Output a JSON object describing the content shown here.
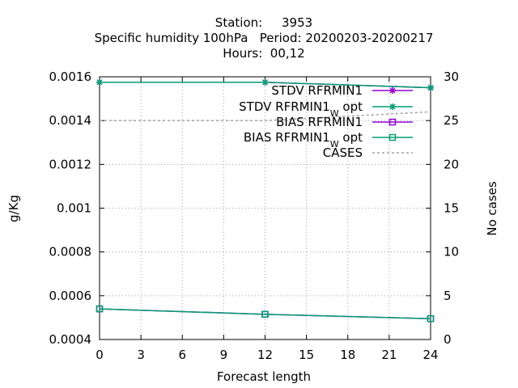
{
  "chart_data": {
    "type": "line",
    "title_lines": [
      "Station:     3953",
      "Specific humidity 100hPa   Period: 20200203-20200217",
      "Hours:  00,12"
    ],
    "xlabel": "Forecast length",
    "ylabel": "g/Kg",
    "y2label": "No cases",
    "x_ticks": [
      "0",
      "3",
      "6",
      "9",
      "12",
      "15",
      "18",
      "21",
      "24"
    ],
    "y_ticks": [
      "0.0004",
      "0.0006",
      "0.0008",
      "0.001",
      "0.0012",
      "0.0014",
      "0.0016"
    ],
    "y2_ticks": [
      "0",
      "5",
      "10",
      "15",
      "20",
      "25",
      "30"
    ],
    "xlim": [
      0,
      24
    ],
    "ylim": [
      0.0004,
      0.0016
    ],
    "y2lim": [
      0,
      30
    ],
    "grid": true,
    "legend_position": "top-right",
    "x": [
      0,
      12,
      24
    ],
    "series": [
      {
        "name": "STDV RFRMIN1",
        "color": "#9400d3",
        "marker": "star",
        "axis": "y",
        "values": [
          0.001575,
          0.001575,
          0.00155
        ]
      },
      {
        "name": "STDV RFRMIN1",
        "name_sub": "W",
        "name_suffix": " opt",
        "color": "#009e73",
        "marker": "star",
        "axis": "y",
        "values": [
          0.001575,
          0.001575,
          0.00155
        ]
      },
      {
        "name": "BIAS RFRMIN1",
        "color": "#9400d3",
        "marker": "square",
        "axis": "y",
        "values": [
          0.00054,
          0.000515,
          0.000495
        ]
      },
      {
        "name": "BIAS RFRMIN1",
        "name_sub": "W",
        "name_suffix": " opt",
        "color": "#009e73",
        "marker": "square",
        "axis": "y",
        "values": [
          0.00054,
          0.000515,
          0.000495
        ]
      },
      {
        "name": "CASES",
        "color": "#a0a0a0",
        "marker": "none",
        "dash": true,
        "axis": "y2",
        "values": [
          25,
          25,
          26
        ]
      }
    ]
  }
}
